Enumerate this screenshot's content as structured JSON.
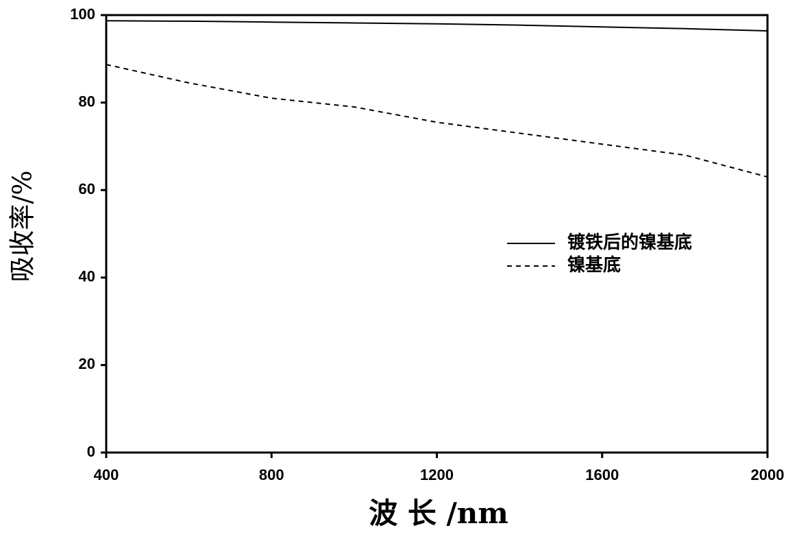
{
  "chart_data": {
    "type": "line",
    "xlabel": "波 长 /nm",
    "ylabel": "吸收率/%",
    "x": [
      400,
      600,
      800,
      1000,
      1200,
      1400,
      1600,
      1800,
      2000
    ],
    "series": [
      {
        "name": "镀铁后的镍基底",
        "color": "#000000",
        "dashed": false,
        "values": [
          98.7,
          98.6,
          98.4,
          98.2,
          98.0,
          97.7,
          97.3,
          96.9,
          96.4
        ]
      },
      {
        "name": "镍基底",
        "color": "#000000",
        "dashed": true,
        "values": [
          88.7,
          84.5,
          81.0,
          79.0,
          75.5,
          73.0,
          70.5,
          68.0,
          63.0
        ]
      }
    ],
    "xlim": [
      400,
      2000
    ],
    "xticks": [
      400,
      800,
      1200,
      1600,
      2000
    ],
    "ylim": [
      0,
      100
    ],
    "yticks": [
      0,
      20,
      40,
      60,
      80,
      100
    ],
    "grid": false
  }
}
